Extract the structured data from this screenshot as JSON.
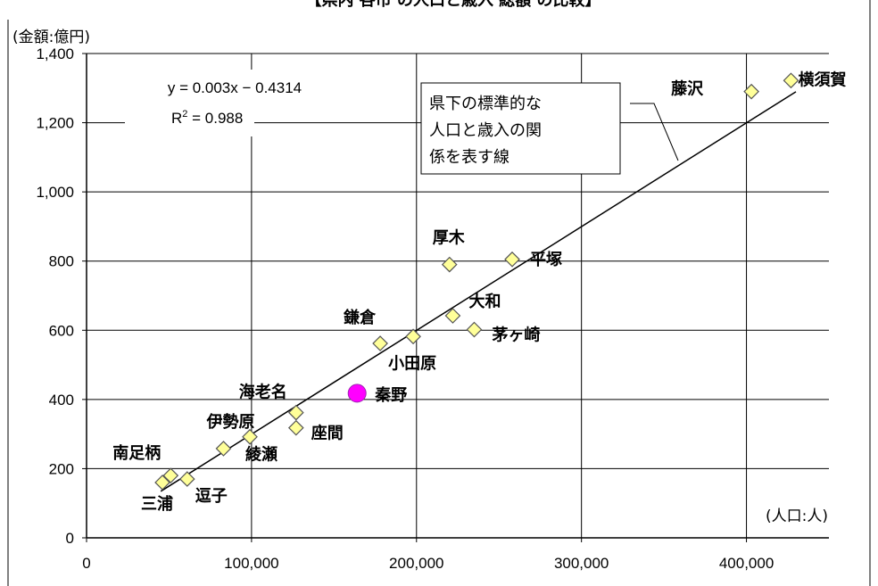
{
  "title_partial": "【県内 各市 の人口と歳入 総額 の比較】",
  "y_unit_label": "(金額:億円)",
  "x_unit_label": "(人口:人)",
  "equation": "y = 0.003x − 0.4314",
  "r2_prefix": "R",
  "r2_sup": "2",
  "r2_value": " = 0.988",
  "legend_box_lines": [
    "県下の標準的な",
    "人口と歳入の関",
    "係を表す線"
  ],
  "colors": {
    "point_fill": "#ffff99",
    "point_stroke": "#555555",
    "highlight_fill": "#ff00ff",
    "line": "#000000",
    "grid": "#000000"
  },
  "chart_data": {
    "type": "scatter",
    "xlim": [
      0,
      450000
    ],
    "ylim": [
      0,
      1400
    ],
    "x_ticks": [
      0,
      100000,
      200000,
      300000,
      400000
    ],
    "x_tick_labels": [
      "0",
      "100,000",
      "200,000",
      "300,000",
      "400,000"
    ],
    "y_ticks": [
      0,
      200,
      400,
      600,
      800,
      1000,
      1200,
      1400
    ],
    "y_tick_labels": [
      "0",
      "200",
      "400",
      "600",
      "800",
      "1,000",
      "1,200",
      "1,400"
    ],
    "grid": true,
    "trendline": {
      "slope": 0.003,
      "intercept": -0.4314,
      "r2": 0.988,
      "x_range": [
        45000,
        430000
      ]
    },
    "points": [
      {
        "name": "横須賀",
        "x": 427000,
        "y": 1322,
        "highlight": false
      },
      {
        "name": "藤沢",
        "x": 403000,
        "y": 1290,
        "highlight": false
      },
      {
        "name": "平塚",
        "x": 258000,
        "y": 805,
        "highlight": false
      },
      {
        "name": "厚木",
        "x": 220000,
        "y": 790,
        "highlight": false
      },
      {
        "name": "大和",
        "x": 222000,
        "y": 642,
        "highlight": false
      },
      {
        "name": "茅ヶ崎",
        "x": 235000,
        "y": 602,
        "highlight": false
      },
      {
        "name": "小田原",
        "x": 198000,
        "y": 582,
        "highlight": false
      },
      {
        "name": "鎌倉",
        "x": 178000,
        "y": 562,
        "highlight": false
      },
      {
        "name": "秦野",
        "x": 164000,
        "y": 418,
        "highlight": true
      },
      {
        "name": "海老名",
        "x": 127000,
        "y": 362,
        "highlight": false
      },
      {
        "name": "座間",
        "x": 127000,
        "y": 318,
        "highlight": false
      },
      {
        "name": "綾瀬",
        "x": 99000,
        "y": 292,
        "highlight": false
      },
      {
        "name": "伊勢原",
        "x": 83000,
        "y": 258,
        "highlight": false
      },
      {
        "name": "逗子",
        "x": 61000,
        "y": 170,
        "highlight": false
      },
      {
        "name": "南足柄",
        "x": 51000,
        "y": 180,
        "highlight": false
      },
      {
        "name": "三浦",
        "x": 46000,
        "y": 160,
        "highlight": false
      }
    ]
  }
}
